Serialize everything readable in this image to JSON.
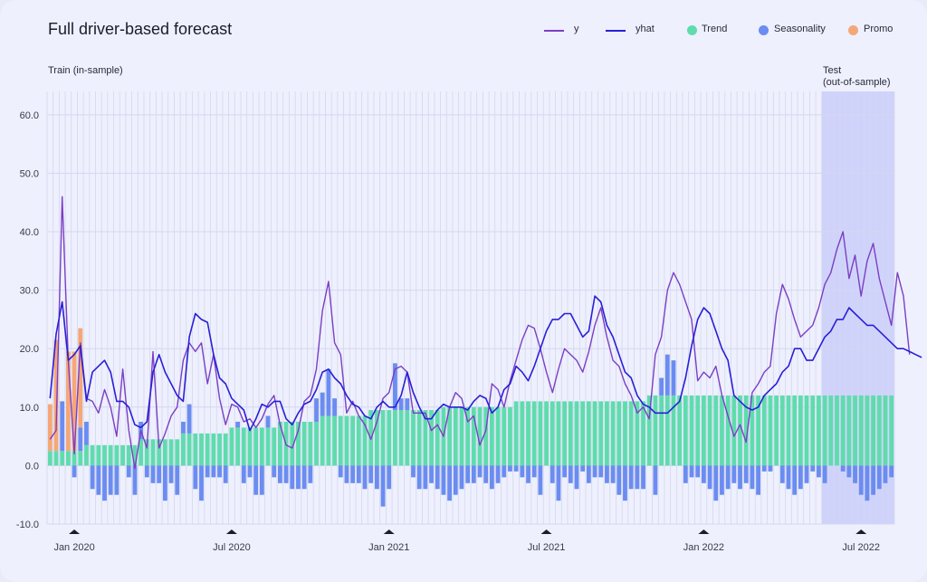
{
  "title": "Full driver-based forecast",
  "legend": [
    {
      "label": "y",
      "kind": "line",
      "color": "#7b3fc4"
    },
    {
      "label": "yhat",
      "kind": "line",
      "color": "#2a1fd6"
    },
    {
      "label": "Trend",
      "kind": "dot",
      "color": "#5fdcae"
    },
    {
      "label": "Seasonality",
      "kind": "dot",
      "color": "#6b8cf0"
    },
    {
      "label": "Promo",
      "kind": "dot",
      "color": "#f5a778"
    }
  ],
  "regions": {
    "train_label": "Train (in-sample)",
    "test_label_1": "Test",
    "test_label_2": "(out-of-sample)"
  },
  "colors": {
    "trend": "#5fdcae",
    "seasonality": "#6b8cf0",
    "promo": "#f5a778",
    "y": "#7b3fc4",
    "yhat": "#2a1fd6",
    "test_region": "#cfd3fb",
    "grid": "#d4d7f0"
  },
  "chart_data": {
    "type": "bar",
    "title": "Full driver-based forecast",
    "xlabel": "",
    "ylabel": "",
    "ylim": [
      -10,
      64
    ],
    "yticks": [
      -10,
      0,
      10,
      20,
      30,
      40,
      50,
      60
    ],
    "ytick_labels": [
      "-10.0",
      "0.0",
      "10.0",
      "20.0",
      "30.0",
      "40.0",
      "50.0",
      "60.0"
    ],
    "xticks": [
      {
        "label": "Jan 2020",
        "week": 4
      },
      {
        "label": "Jul 2020",
        "week": 30
      },
      {
        "label": "Jan 2021",
        "week": 56
      },
      {
        "label": "Jul 2021",
        "week": 82
      },
      {
        "label": "Jan 2022",
        "week": 108
      },
      {
        "label": "Jul 2022",
        "week": 134
      }
    ],
    "holiday_markers_weeks": [
      4,
      30,
      56,
      82,
      108,
      134
    ],
    "test_start_week": 128,
    "n_weeks": 140,
    "grid": true,
    "legend_position": "top-right",
    "trend": [
      2.5,
      2.5,
      2.5,
      2.5,
      2.5,
      2.5,
      3.5,
      3.5,
      3.5,
      3.5,
      3.5,
      3.5,
      3.5,
      3.5,
      3.5,
      4.5,
      4.5,
      4.5,
      4.5,
      4.5,
      4.5,
      4.5,
      5.5,
      5.5,
      5.5,
      5.5,
      5.5,
      5.5,
      5.5,
      5.5,
      6.5,
      6.5,
      6.5,
      6.5,
      6.5,
      6.5,
      6.5,
      6.5,
      7.5,
      7.5,
      7.5,
      7.5,
      7.5,
      7.5,
      7.5,
      8.5,
      8.5,
      8.5,
      8.5,
      8.5,
      8.5,
      8.5,
      8.5,
      9.5,
      9.5,
      9.5,
      9.5,
      9.5,
      9.5,
      9.5,
      9.5,
      9.5,
      9.5,
      9.5,
      9.5,
      10,
      10,
      10,
      10,
      10,
      10,
      10,
      10,
      10,
      10,
      10,
      10,
      11,
      11,
      11,
      11,
      11,
      11,
      11,
      11,
      11,
      11,
      11,
      11,
      11,
      11,
      11,
      11,
      11,
      11,
      11,
      11,
      11,
      11,
      12,
      12,
      12,
      12,
      12,
      12,
      12,
      12,
      12,
      12,
      12,
      12,
      12,
      12,
      12,
      12,
      12,
      12,
      12,
      12,
      12,
      12,
      12,
      12,
      12,
      12,
      12,
      12,
      12,
      12,
      12,
      12,
      12,
      12,
      12,
      12,
      12,
      12,
      12,
      12,
      12,
      12,
      12
    ],
    "seasonality": [
      0,
      0,
      8.5,
      0,
      -2,
      4,
      4,
      -4,
      -5,
      -6,
      -5,
      -5,
      0,
      -2,
      -5,
      3,
      -2,
      -3,
      -3,
      -6,
      -3,
      -5,
      2,
      5,
      -4,
      -6,
      -2,
      -2,
      -2,
      -3,
      0,
      1,
      -3,
      -2,
      -5,
      -5,
      2,
      -2,
      -3,
      -3,
      -4,
      -4,
      -4,
      -3,
      4,
      4,
      8,
      3,
      -2,
      -3,
      -3,
      -3,
      -4,
      -3,
      -4,
      -7,
      -4,
      8,
      2,
      2,
      -2,
      -4,
      -4,
      -3,
      -4,
      -5,
      -6,
      -5,
      -4,
      -3,
      -3,
      -2,
      -3,
      -4,
      -3,
      -2,
      -1,
      -1,
      -2,
      -3,
      -2,
      -5,
      0,
      -3,
      -6,
      -2,
      -3,
      -4,
      -1,
      -3,
      -2,
      -2,
      -3,
      -3,
      -5,
      -6,
      -4,
      -4,
      -4,
      0,
      -5,
      3,
      7,
      6,
      0,
      -3,
      -2,
      -2,
      -3,
      -4,
      -6,
      -5,
      -4,
      -3,
      -4,
      -3,
      -4,
      -5,
      -1,
      -1,
      0,
      -3,
      -4,
      -5,
      -4,
      -3,
      -1,
      -2,
      -3,
      0,
      0,
      -1,
      -2,
      -3,
      -5,
      -6,
      -5,
      -4,
      -3,
      -2
    ],
    "promo": [
      8,
      19,
      0,
      17,
      17,
      17,
      0,
      0,
      0,
      0,
      0,
      0,
      0,
      0,
      0,
      0,
      0,
      0,
      0,
      0,
      0,
      0,
      0,
      0,
      0,
      0,
      0,
      0,
      0,
      0,
      0,
      0,
      0,
      0,
      0,
      0,
      0,
      0,
      0,
      0,
      0,
      0,
      0,
      0,
      0,
      0,
      0,
      0,
      0,
      0,
      0,
      0,
      0,
      0,
      0,
      0,
      0,
      0,
      0,
      0,
      0,
      0,
      0,
      0,
      0,
      0,
      0,
      0,
      0,
      0,
      0,
      0,
      0,
      0,
      0,
      0,
      0,
      0,
      0,
      0,
      0,
      0,
      0,
      0,
      0,
      0,
      0,
      0,
      0,
      0,
      0,
      0,
      0,
      0,
      0,
      0,
      0,
      0,
      0,
      0,
      0,
      0,
      0,
      0,
      0,
      0,
      0,
      0,
      0,
      0,
      0,
      0,
      0,
      0,
      0,
      0,
      0,
      0,
      0,
      0,
      0,
      0,
      0,
      0,
      0,
      0,
      0,
      0,
      0,
      0,
      0,
      0,
      0,
      0,
      0,
      0,
      0,
      0,
      0,
      0
    ],
    "y": [
      4.5,
      6,
      46,
      18,
      2,
      21,
      11.5,
      11,
      9,
      13,
      10,
      5,
      16.5,
      6,
      -0.5,
      6,
      3,
      19.5,
      3,
      5.5,
      8.5,
      10,
      18,
      21,
      19.5,
      21,
      14,
      19,
      11.5,
      7,
      10.5,
      10,
      7.5,
      8,
      6.5,
      8,
      10.5,
      12,
      7,
      3.5,
      3,
      6,
      11,
      12,
      16.5,
      26.5,
      31.5,
      21,
      19,
      9,
      11,
      8.5,
      7,
      4.5,
      7.5,
      11.5,
      12.5,
      16.5,
      17,
      16,
      9,
      9,
      9,
      6,
      7,
      5,
      10,
      12.5,
      11.5,
      7.5,
      8.5,
      3.5,
      6,
      14,
      13,
      10,
      14.5,
      18,
      21.5,
      24,
      23.5,
      20,
      16,
      12.5,
      16.5,
      20,
      19,
      18,
      16,
      19.5,
      24,
      27,
      22,
      18,
      17,
      14,
      12,
      9,
      10,
      8,
      19,
      22,
      30,
      33,
      31,
      28,
      25,
      14.5,
      16,
      15,
      17,
      12,
      8.5,
      5,
      7,
      4,
      12.5,
      14,
      16,
      17,
      26,
      31,
      28.5,
      25,
      22,
      23,
      24,
      27,
      31,
      33,
      37,
      40,
      32,
      36,
      29,
      35,
      38,
      32,
      28,
      24,
      33,
      29,
      19
    ],
    "yhat": [
      11.5,
      22.5,
      28,
      18,
      19,
      20.5,
      11,
      16,
      17,
      18,
      16,
      11,
      11,
      10,
      7,
      6.5,
      7.5,
      16,
      19,
      16,
      14,
      12,
      11,
      22,
      26,
      25,
      24.5,
      19,
      15,
      14,
      11.5,
      10.5,
      9.5,
      6,
      8,
      10.5,
      10,
      11,
      11,
      8,
      7,
      9,
      10.5,
      11,
      13,
      16,
      16.5,
      15,
      14,
      12,
      10.5,
      10,
      8.5,
      8,
      10,
      11,
      10,
      10,
      12,
      16,
      12.5,
      10,
      8,
      8,
      9.5,
      10.5,
      10,
      10,
      10,
      9.5,
      11,
      12,
      11.5,
      9,
      10,
      13,
      14,
      17,
      16,
      14.5,
      17,
      20,
      23,
      25,
      25,
      26,
      26,
      24,
      22,
      23,
      29,
      28,
      24,
      22,
      19,
      16,
      15,
      12,
      10.5,
      10,
      9,
      9,
      9,
      10,
      11,
      15,
      20.5,
      25,
      27,
      26,
      23,
      20,
      18,
      12,
      11,
      10,
      9.5,
      10,
      12,
      13,
      14,
      16,
      17,
      20,
      20,
      18,
      18,
      20,
      22,
      23,
      25,
      25,
      27,
      26,
      25,
      24,
      24,
      23,
      22,
      21,
      20,
      20,
      19.5,
      19,
      18.5
    ]
  }
}
